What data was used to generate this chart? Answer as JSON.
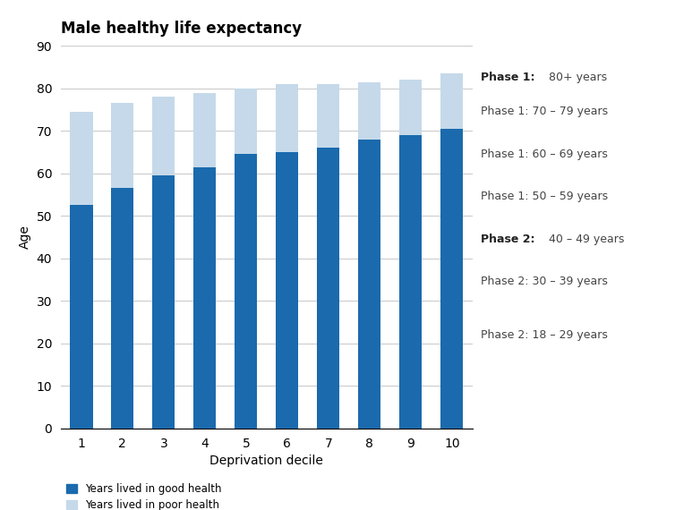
{
  "title": "Male healthy life expectancy",
  "xlabel": "Deprivation decile",
  "ylabel": "Age",
  "categories": [
    1,
    2,
    3,
    4,
    5,
    6,
    7,
    8,
    9,
    10
  ],
  "good_health": [
    52.5,
    56.5,
    59.5,
    61.5,
    64.5,
    65.0,
    66.0,
    68.0,
    69.0,
    70.5
  ],
  "total": [
    74.5,
    76.5,
    78.0,
    79.0,
    80.0,
    81.0,
    81.0,
    81.5,
    82.0,
    83.5
  ],
  "color_good": "#1a6aad",
  "color_poor": "#c5d9ea",
  "ylim": [
    0,
    90
  ],
  "yticks": [
    0,
    10,
    20,
    30,
    40,
    50,
    60,
    70,
    80,
    90
  ],
  "legend_good": "Years lived in good health",
  "legend_poor": "Years lived in poor health",
  "right_labels": [
    {
      "y": 82.5,
      "text": "80+ years",
      "prefix": "Phase 1:",
      "bold": true
    },
    {
      "y": 74.5,
      "text": "70 – 79 years",
      "prefix": "Phase 1:",
      "bold": false
    },
    {
      "y": 64.5,
      "text": "60 – 69 years",
      "prefix": "Phase 1:",
      "bold": false
    },
    {
      "y": 54.5,
      "text": "50 – 59 years",
      "prefix": "Phase 1:",
      "bold": false
    },
    {
      "y": 44.5,
      "text": "40 – 49 years",
      "prefix": "Phase 2:",
      "bold": true
    },
    {
      "y": 34.5,
      "text": "30 – 39 years",
      "prefix": "Phase 2:",
      "bold": false
    },
    {
      "y": 22.0,
      "text": "18 – 29 years",
      "prefix": "Phase 2:",
      "bold": false
    }
  ],
  "background_color": "#ffffff",
  "grid_color": "#cccccc",
  "title_fontsize": 12,
  "axis_fontsize": 10,
  "tick_fontsize": 10,
  "label_fontsize": 9
}
